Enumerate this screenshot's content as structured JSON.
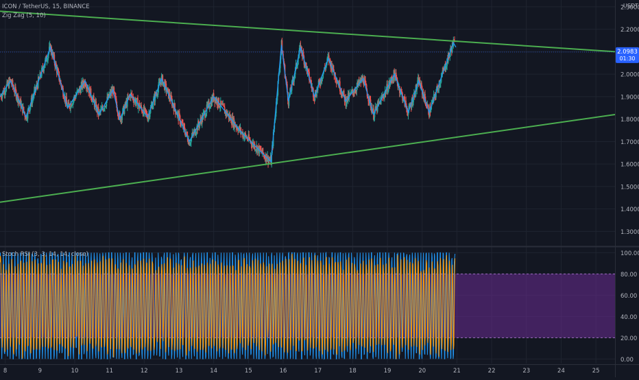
{
  "header": {
    "symbol_line": "ICON / TetherUS, 15, BINANCE",
    "indicator_main": "Zig Zag (5, 10)",
    "indicator_osc": "Stoch RSI (3, 3, 14, 14, close)",
    "currency": "USDT"
  },
  "price_badge": {
    "price": "2.0983",
    "countdown": "01:30"
  },
  "colors": {
    "background": "#131722",
    "grid": "#1f2430",
    "text": "#b2b5be",
    "zigzag": "#2196f3",
    "trendline": "#4caf50",
    "candle_up": "#26a69a",
    "candle_down": "#ef5350",
    "stoch_k": "#2196f3",
    "stoch_d": "#ff9800",
    "osc_band": "#6a2c91",
    "price_badge": "#2962ff"
  },
  "chart_data": [
    {
      "type": "line",
      "title": "ICON / TetherUS, 15, BINANCE",
      "y_axis": {
        "unit": "USDT",
        "range": [
          1.24,
          2.33
        ],
        "ticks": [
          "2.3000",
          "2.2000",
          "2.1000",
          "2.0000",
          "1.9000",
          "1.8000",
          "1.7000",
          "1.6000",
          "1.5000",
          "1.4000",
          "1.3000"
        ],
        "tick_values": [
          2.3,
          2.2,
          2.1,
          2.0,
          1.9,
          1.8,
          1.7,
          1.6,
          1.5,
          1.4,
          1.3
        ]
      },
      "x_axis": {
        "unit": "day",
        "range": [
          7.85,
          25.55
        ],
        "ticks": [
          "8",
          "9",
          "10",
          "11",
          "12",
          "13",
          "14",
          "15",
          "16",
          "17",
          "18",
          "19",
          "20",
          "21",
          "22",
          "23",
          "24",
          "25"
        ],
        "tick_values": [
          8,
          9,
          10,
          11,
          12,
          13,
          14,
          15,
          16,
          17,
          18,
          19,
          20,
          21,
          22,
          23,
          24,
          25
        ]
      },
      "series": [
        {
          "name": "Zig Zag (5, 10)",
          "points": [
            [
              7.85,
              1.9
            ],
            [
              8.15,
              1.97
            ],
            [
              8.6,
              1.81
            ],
            [
              9.3,
              2.12
            ],
            [
              9.8,
              1.85
            ],
            [
              10.3,
              1.97
            ],
            [
              10.7,
              1.82
            ],
            [
              11.1,
              1.93
            ],
            [
              11.3,
              1.8
            ],
            [
              11.6,
              1.91
            ],
            [
              12.1,
              1.81
            ],
            [
              12.5,
              1.98
            ],
            [
              13.3,
              1.7
            ],
            [
              14.0,
              1.9
            ],
            [
              14.8,
              1.74
            ],
            [
              15.65,
              1.61
            ],
            [
              15.95,
              2.13
            ],
            [
              16.15,
              1.88
            ],
            [
              16.5,
              2.12
            ],
            [
              16.9,
              1.9
            ],
            [
              17.3,
              2.07
            ],
            [
              17.8,
              1.88
            ],
            [
              18.3,
              1.98
            ],
            [
              18.6,
              1.82
            ],
            [
              19.2,
              2.0
            ],
            [
              19.6,
              1.83
            ],
            [
              19.9,
              1.97
            ],
            [
              20.2,
              1.83
            ],
            [
              20.9,
              2.14
            ],
            [
              20.97,
              2.12
            ]
          ]
        },
        {
          "name": "",
          "points": [
            [
              7.85,
              2.28
            ],
            [
              25.55,
              2.1
            ]
          ]
        },
        {
          "name": "",
          "points": [
            [
              7.85,
              1.43
            ],
            [
              25.55,
              1.82
            ]
          ]
        }
      ],
      "last_price": 2.0983
    },
    {
      "type": "line",
      "title": "Stoch RSI (3, 3, 14, 14, close)",
      "y_axis": {
        "range": [
          -4.3,
          104.1
        ],
        "ticks": [
          "100.00",
          "80.00",
          "60.00",
          "40.00",
          "20.00",
          "0.00"
        ],
        "tick_values": [
          100,
          80,
          60,
          40,
          20,
          0
        ]
      },
      "x_axis": {
        "unit": "day",
        "range": [
          7.85,
          25.55
        ]
      },
      "bands": {
        "upper": 80,
        "lower": 20
      },
      "series": [
        {
          "name": "",
          "description": "%K oscillates 0–100 roughly every 2 hours from day 7.85 to 20.95"
        },
        {
          "name": "",
          "description": "%D smoothed 3-period average of %K"
        }
      ]
    }
  ]
}
